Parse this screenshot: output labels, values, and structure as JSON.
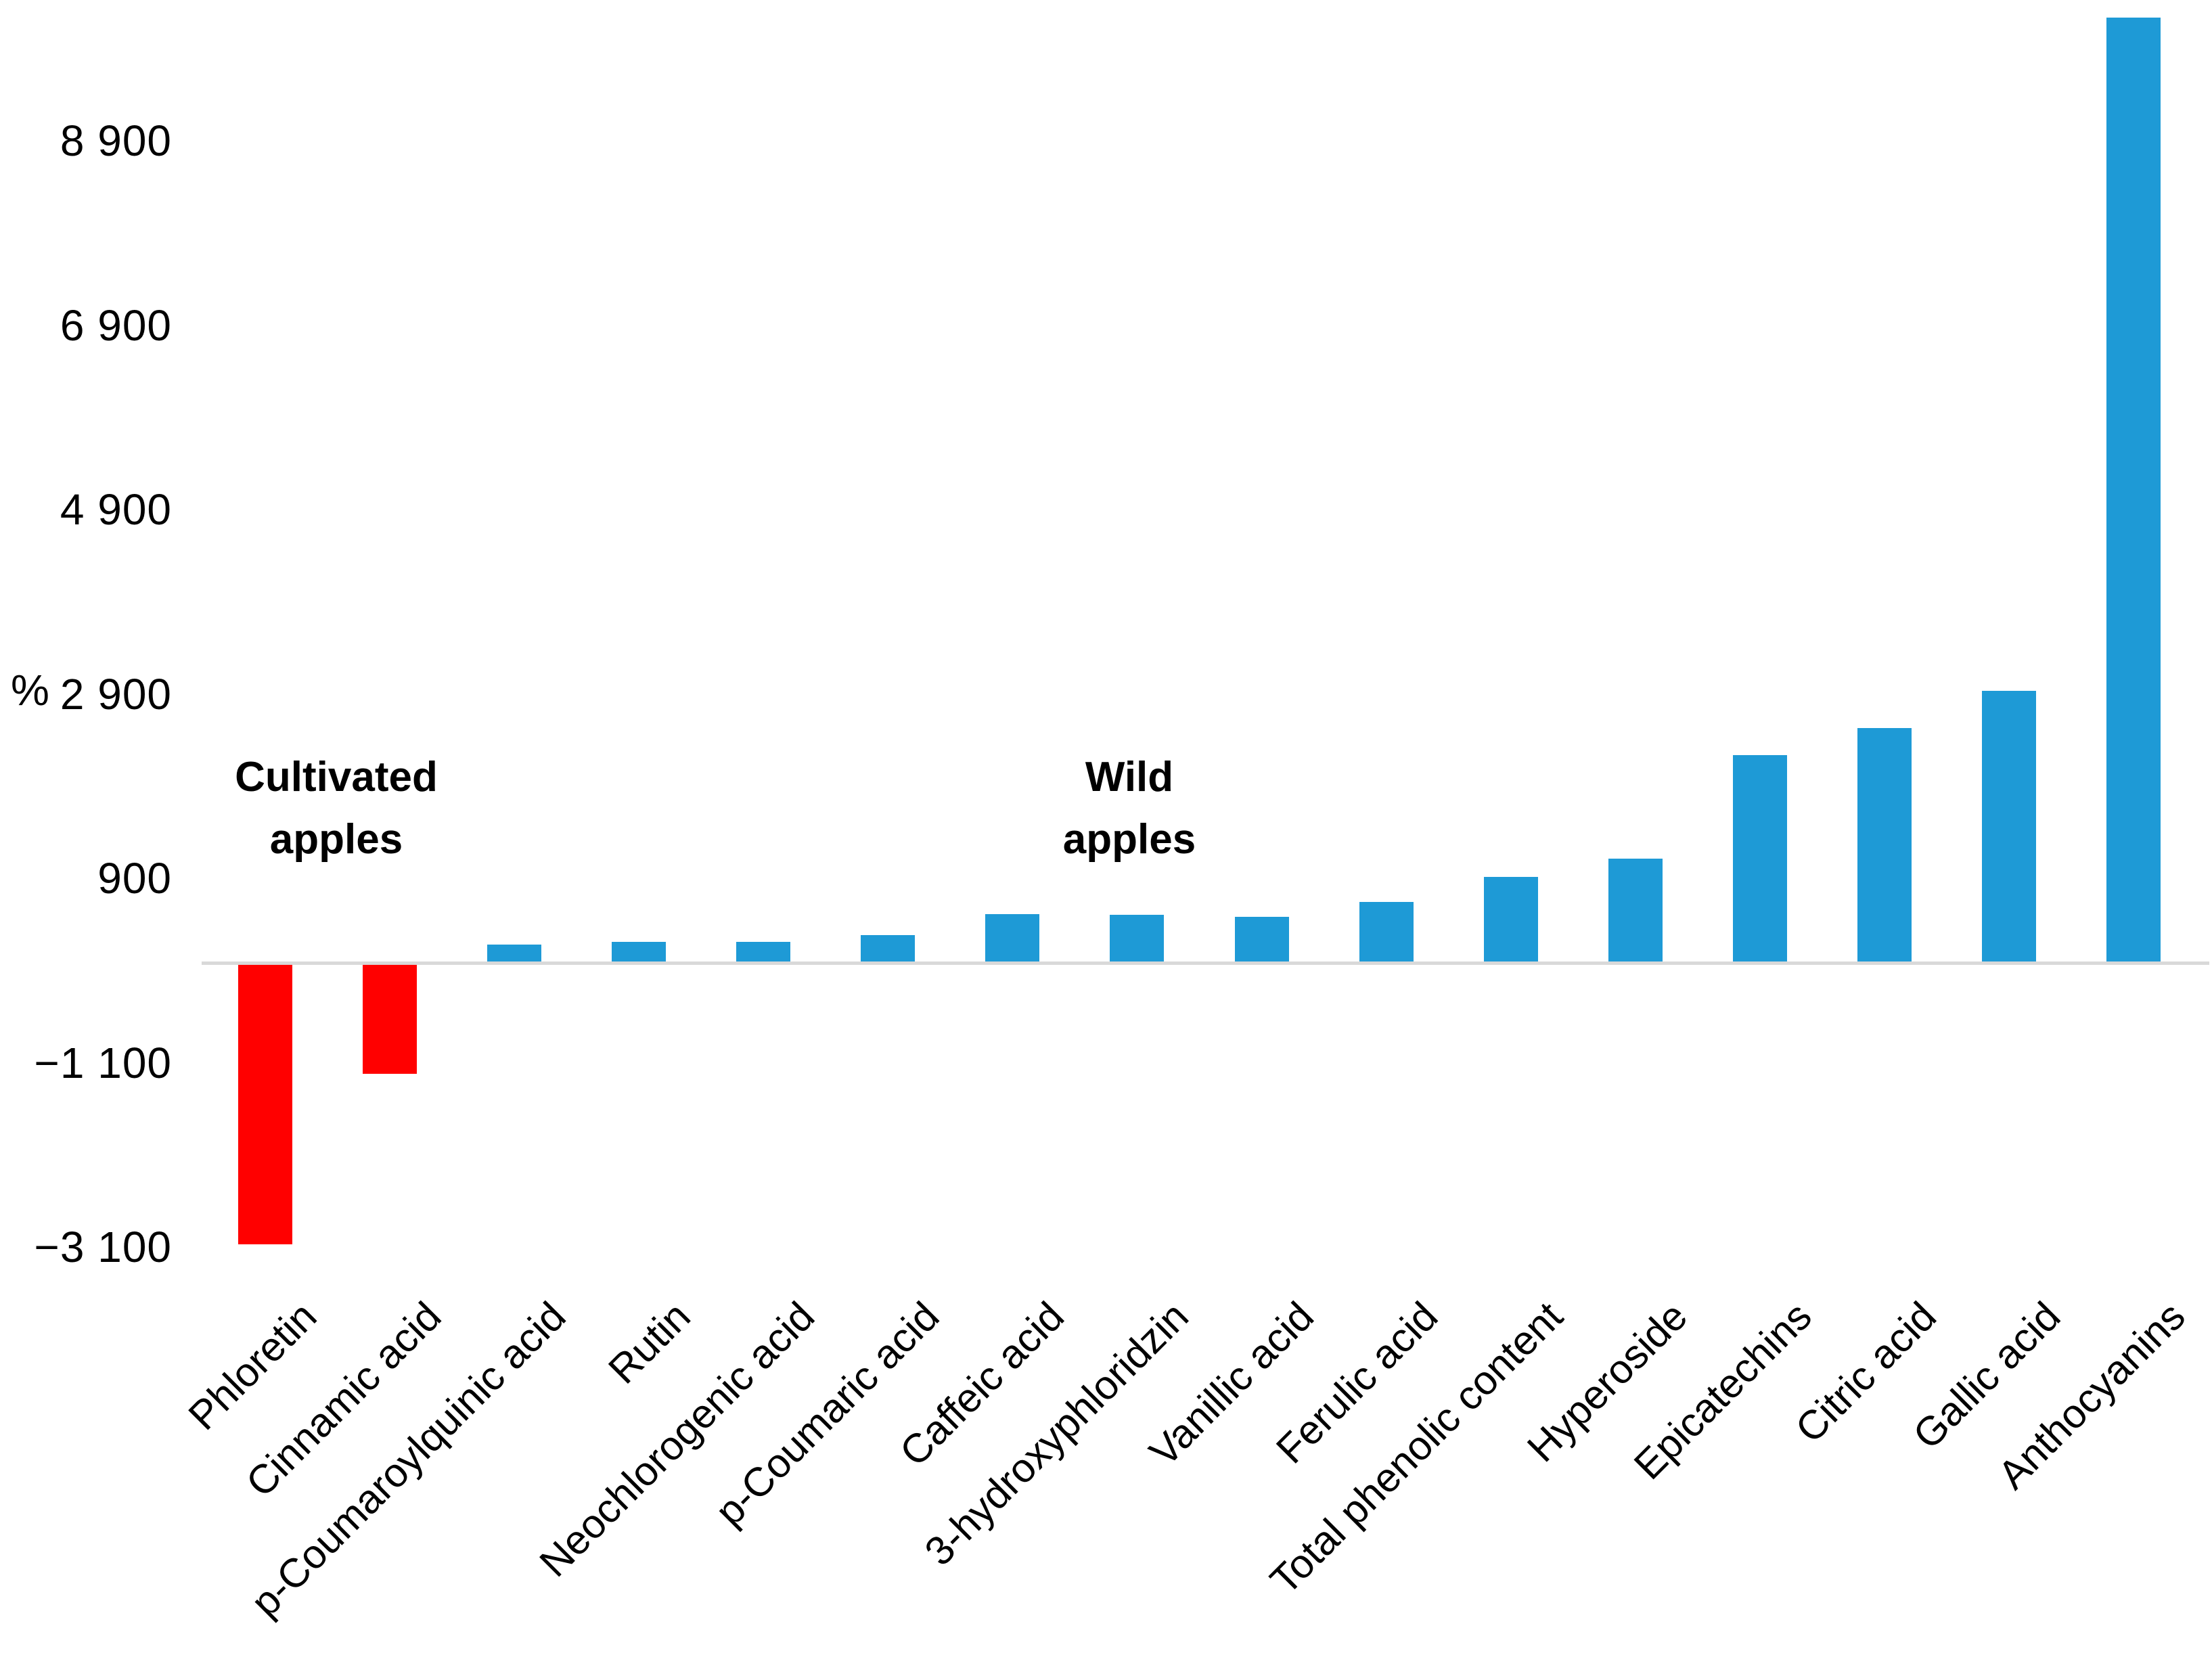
{
  "chart_data": {
    "type": "bar",
    "title": "",
    "ylabel": "%",
    "grid": false,
    "legend": "none",
    "ylim": [
      -3500,
      10430
    ],
    "categories": [
      "Phloretin",
      "Cinnamic acid",
      "p-Coumaroylquinic acid",
      "Rutin",
      "Neochlorogenic acid",
      "p-Coumaric acid",
      "Caffeic acid",
      "3-hydroxyphloridzin",
      "Vanillic acid",
      "Ferulic acid",
      "Total phenolic content",
      "Hyperoside",
      "Epicatechins",
      "Citric acid",
      "Gallic acid",
      "Anthocyanins"
    ],
    "values": [
      -3050,
      -1200,
      200,
      230,
      230,
      300,
      530,
      520,
      500,
      660,
      930,
      1130,
      2250,
      2550,
      2950,
      10250
    ],
    "yticks": [
      {
        "value": 8900,
        "label": "8 900"
      },
      {
        "value": 6900,
        "label": "6 900"
      },
      {
        "value": 4900,
        "label": "4 900"
      },
      {
        "value": 2900,
        "label": "2 900"
      },
      {
        "value": 900,
        "label": "900"
      },
      {
        "value": -1100,
        "label": "−1 100"
      },
      {
        "value": -3100,
        "label": "−3 100"
      }
    ],
    "group_annotations": [
      {
        "lines": [
          "Cultivated",
          "apples"
        ],
        "category_center": 0.57
      },
      {
        "lines": [
          "Wild",
          "apples"
        ],
        "category_center": 6.94
      }
    ],
    "colors": {
      "positive": "#1e9ad6",
      "negative": "#ff0000",
      "baseline": "#d9d9d9",
      "text": "#000000"
    }
  }
}
